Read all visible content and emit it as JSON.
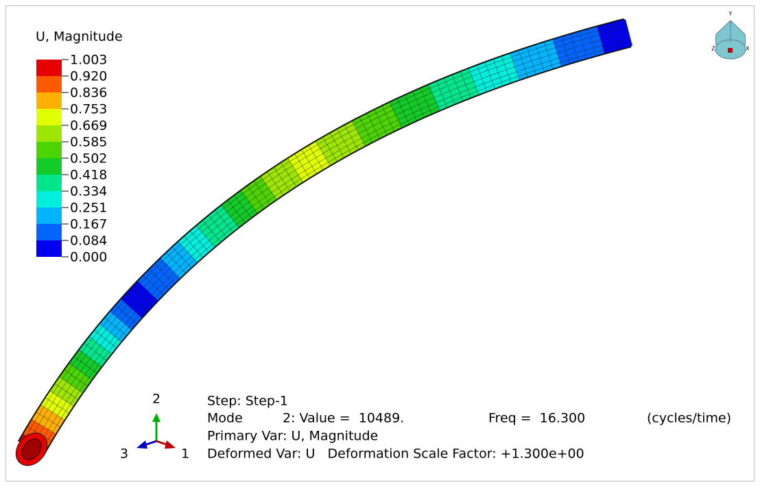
{
  "legend": {
    "title": "U, Magnitude",
    "labels": [
      "1.003",
      "0.920",
      "0.836",
      "0.753",
      "0.669",
      "0.585",
      "0.502",
      "0.418",
      "0.334",
      "0.251",
      "0.167",
      "0.084",
      "0.000"
    ],
    "colors": [
      "#e60000",
      "#ff5a00",
      "#ffb000",
      "#e2ff00",
      "#9ee600",
      "#4cd400",
      "#14cc28",
      "#00e68c",
      "#00eedc",
      "#00b4ff",
      "#0064ff",
      "#0000f0"
    ]
  },
  "info": {
    "line1": "Step: Step-1",
    "mode": "Mode",
    "value": "2: Value =  10489.",
    "freq": "Freq =  16.300",
    "units": "(cycles/time)",
    "line3": "Primary Var: U, Magnitude",
    "line4": "Deformed Var: U   Deformation Scale Factor: +1.300e+00"
  },
  "triad": {
    "axis2": "2",
    "axis1": "1",
    "axis3": "3"
  },
  "view_icon": {
    "y": "Y",
    "z": "Z",
    "x": "X"
  }
}
